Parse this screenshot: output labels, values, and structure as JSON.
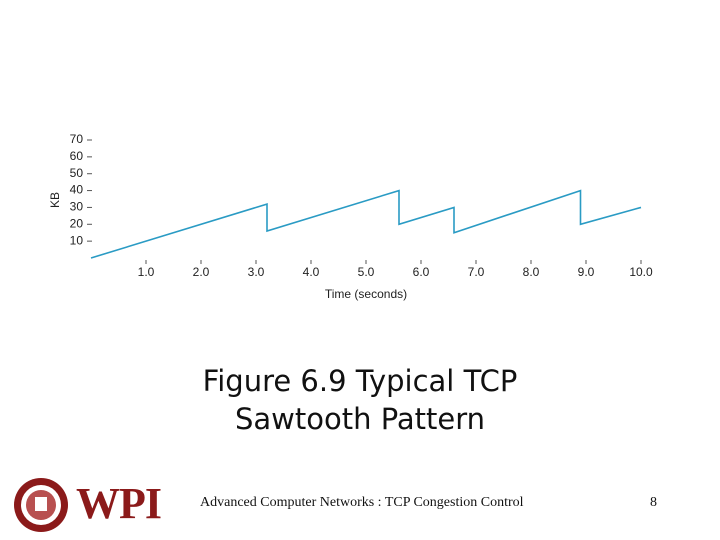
{
  "chart_data": {
    "type": "line",
    "y_label": "KB",
    "x_label": "Time (seconds)",
    "x": [
      0,
      3.2,
      3.2,
      5.6,
      5.6,
      6.6,
      6.6,
      8.9,
      8.9,
      10
    ],
    "values": [
      0,
      32,
      16,
      40,
      20,
      30,
      15,
      40,
      20,
      30
    ],
    "color": "#2a9bc4",
    "xlim": [
      0,
      10
    ],
    "xticks": [
      {
        "value": 1,
        "label": "1.0"
      },
      {
        "value": 2,
        "label": "2.0"
      },
      {
        "value": 3,
        "label": "3.0"
      },
      {
        "value": 4,
        "label": "4.0"
      },
      {
        "value": 5,
        "label": "5.0"
      },
      {
        "value": 6,
        "label": "6.0"
      },
      {
        "value": 7,
        "label": "7.0"
      },
      {
        "value": 8,
        "label": "8.0"
      },
      {
        "value": 9,
        "label": "9.0"
      },
      {
        "value": 10,
        "label": "10.0"
      }
    ],
    "ylim": [
      0,
      70
    ],
    "yticks": [
      10,
      20,
      30,
      40,
      50,
      60,
      70
    ]
  },
  "slide": {
    "title": "Figure 6.9 Typical TCP Sawtooth Pattern",
    "footer": "Advanced Computer Networks : TCP Congestion Control",
    "page": "8",
    "logo": "WPI"
  }
}
